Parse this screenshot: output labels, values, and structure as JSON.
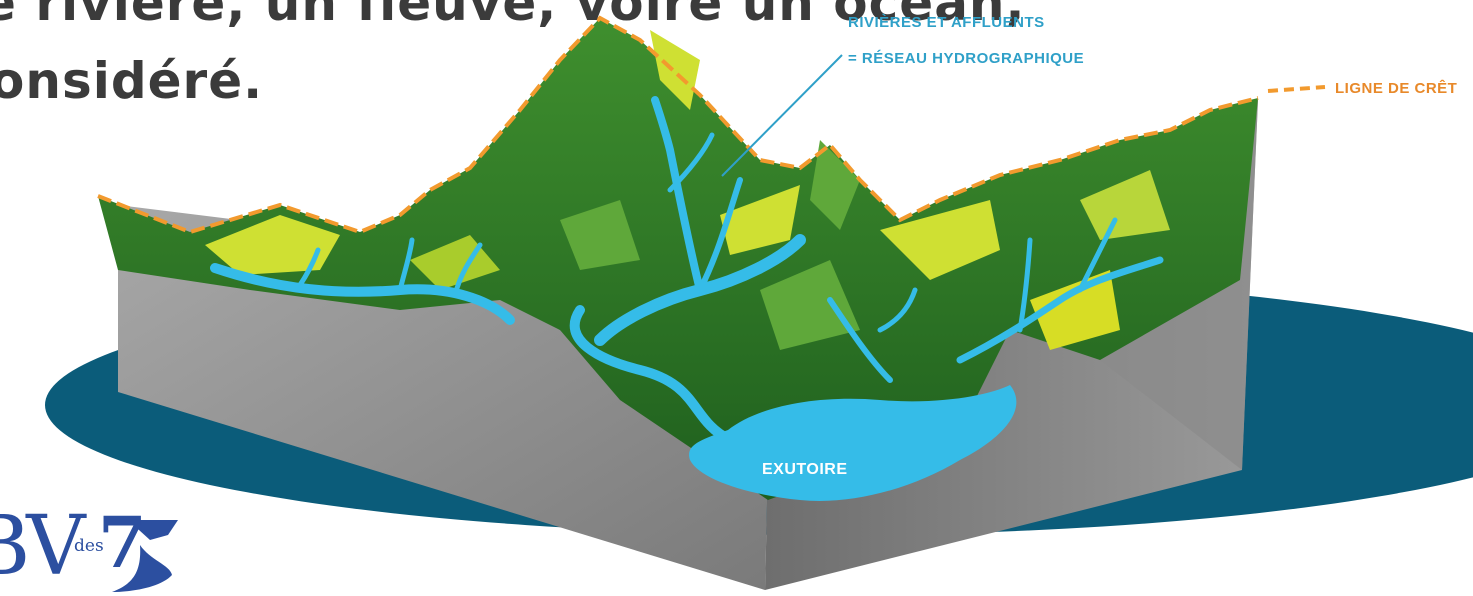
{
  "headline": {
    "line1": "e rivière, un fleuve, voire un océan,",
    "line2": "onsidéré."
  },
  "labels": {
    "rivers_line1": "Rivières et affluents",
    "rivers_line2": "= Réseau hydrographique",
    "crest_line": "Ligne de crêt",
    "outlet": "Exutoire"
  },
  "logo": {
    "text": "BV",
    "sub": "des",
    "digit": "7"
  },
  "colors": {
    "ocean": "#0b5c7a",
    "rock": "#8c8c8c",
    "forest": "#2e7d28",
    "meadow": "#cfe033",
    "water": "#35bce8",
    "crest_line": "#f29a2e",
    "label_blue": "#2fa0c8",
    "crest_label": "#e8892a",
    "headline": "#3b3b3b",
    "logo": "#2c4fa0"
  },
  "icons": [
    "crest-dash-icon",
    "logo-wave-icon"
  ]
}
